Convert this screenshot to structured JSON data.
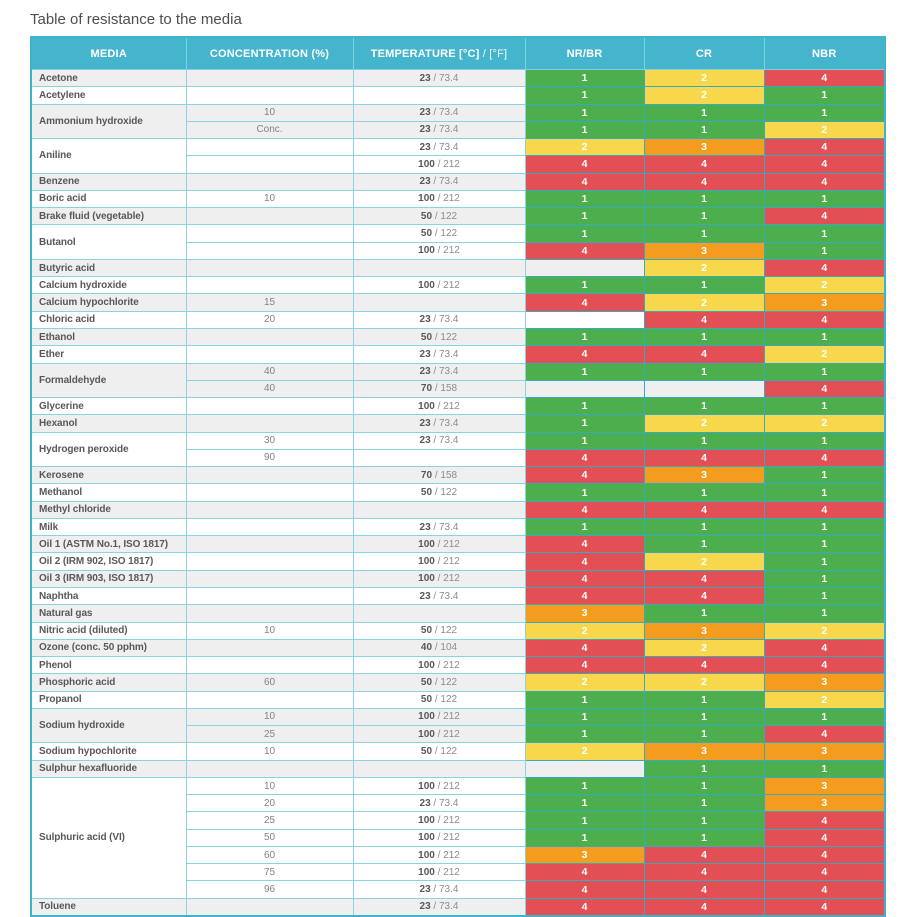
{
  "title": "Table of resistance to the media",
  "strings": {
    "temp_sep": " / "
  },
  "columns": [
    {
      "key": "media",
      "label": "MEDIA"
    },
    {
      "key": "concentration",
      "label": "CONCENTRATION (%)"
    },
    {
      "key": "temperature",
      "label_bold": "TEMPERATURE [°C]",
      "label_light": " / [°F]"
    },
    {
      "key": "nrbr",
      "label": "NR/BR"
    },
    {
      "key": "cr",
      "label": "CR"
    },
    {
      "key": "nbr",
      "label": "NBR"
    }
  ],
  "colors": {
    "header_bg": "#45b5ce",
    "outer_border": "#3fb3cc",
    "inner_border_light": "#8bd3e1",
    "inner_border_dark": "#35abc2",
    "row_alt_bg": "#efeff0",
    "text_dark": "#57585b",
    "text_gray": "#808285",
    "ratings": {
      "1": "#4cae4c",
      "2": "#f7d84c",
      "3": "#f49c1e",
      "4": "#e24f54"
    }
  },
  "rating_scale_note": "1=green 2=yellow 3=orange 4=red",
  "groups": [
    {
      "media": "Acetone",
      "rows": [
        {
          "conc": "",
          "temp": {
            "c": "23",
            "f": "73.4"
          },
          "ratings": [
            1,
            2,
            4
          ]
        }
      ]
    },
    {
      "media": "Acetylene",
      "rows": [
        {
          "conc": "",
          "temp": null,
          "ratings": [
            1,
            2,
            1
          ]
        }
      ]
    },
    {
      "media": "Ammonium hydroxide",
      "rows": [
        {
          "conc": "10",
          "temp": {
            "c": "23",
            "f": "73.4"
          },
          "ratings": [
            1,
            1,
            1
          ]
        },
        {
          "conc": "Conc.",
          "temp": {
            "c": "23",
            "f": "73.4"
          },
          "ratings": [
            1,
            1,
            2
          ]
        }
      ]
    },
    {
      "media": "Aniline",
      "rows": [
        {
          "conc": "",
          "temp": {
            "c": "23",
            "f": "73.4"
          },
          "ratings": [
            2,
            3,
            4
          ]
        },
        {
          "conc": "",
          "temp": {
            "c": "100",
            "f": "212"
          },
          "ratings": [
            4,
            4,
            4
          ]
        }
      ]
    },
    {
      "media": "Benzene",
      "rows": [
        {
          "conc": "",
          "temp": {
            "c": "23",
            "f": "73.4"
          },
          "ratings": [
            4,
            4,
            4
          ]
        }
      ]
    },
    {
      "media": "Boric acid",
      "rows": [
        {
          "conc": "10",
          "temp": {
            "c": "100",
            "f": "212"
          },
          "ratings": [
            1,
            1,
            1
          ]
        }
      ]
    },
    {
      "media": "Brake fluid (vegetable)",
      "rows": [
        {
          "conc": "",
          "temp": {
            "c": "50",
            "f": "122"
          },
          "ratings": [
            1,
            1,
            4
          ]
        }
      ]
    },
    {
      "media": "Butanol",
      "rows": [
        {
          "conc": "",
          "temp": {
            "c": "50",
            "f": "122"
          },
          "ratings": [
            1,
            1,
            1
          ]
        },
        {
          "conc": "",
          "temp": {
            "c": "100",
            "f": "212"
          },
          "ratings": [
            4,
            3,
            1
          ]
        }
      ]
    },
    {
      "media": "Butyric acid",
      "rows": [
        {
          "conc": "",
          "temp": null,
          "ratings": [
            null,
            2,
            4
          ]
        }
      ]
    },
    {
      "media": "Calcium hydroxide",
      "rows": [
        {
          "conc": "",
          "temp": {
            "c": "100",
            "f": "212"
          },
          "ratings": [
            1,
            1,
            2
          ]
        }
      ]
    },
    {
      "media": "Calcium hypochlorite",
      "rows": [
        {
          "conc": "15",
          "temp": null,
          "ratings": [
            4,
            2,
            3
          ]
        }
      ]
    },
    {
      "media": "Chloric acid",
      "rows": [
        {
          "conc": "20",
          "temp": {
            "c": "23",
            "f": "73.4"
          },
          "ratings": [
            null,
            4,
            4
          ]
        }
      ]
    },
    {
      "media": "Ethanol",
      "rows": [
        {
          "conc": "",
          "temp": {
            "c": "50",
            "f": "122"
          },
          "ratings": [
            1,
            1,
            1
          ]
        }
      ]
    },
    {
      "media": "Ether",
      "rows": [
        {
          "conc": "",
          "temp": {
            "c": "23",
            "f": "73.4"
          },
          "ratings": [
            4,
            4,
            2
          ]
        }
      ]
    },
    {
      "media": "Formaldehyde",
      "rows": [
        {
          "conc": "40",
          "temp": {
            "c": "23",
            "f": "73.4"
          },
          "ratings": [
            1,
            1,
            1
          ]
        },
        {
          "conc": "40",
          "temp": {
            "c": "70",
            "f": "158"
          },
          "ratings": [
            null,
            null,
            4
          ]
        }
      ]
    },
    {
      "media": "Glycerine",
      "rows": [
        {
          "conc": "",
          "temp": {
            "c": "100",
            "f": "212"
          },
          "ratings": [
            1,
            1,
            1
          ]
        }
      ]
    },
    {
      "media": "Hexanol",
      "rows": [
        {
          "conc": "",
          "temp": {
            "c": "23",
            "f": "73.4"
          },
          "ratings": [
            1,
            2,
            2
          ]
        }
      ]
    },
    {
      "media": "Hydrogen peroxide",
      "rows": [
        {
          "conc": "30",
          "temp": {
            "c": "23",
            "f": "73.4"
          },
          "ratings": [
            1,
            1,
            1
          ]
        },
        {
          "conc": "90",
          "temp": null,
          "ratings": [
            4,
            4,
            4
          ]
        }
      ]
    },
    {
      "media": "Kerosene",
      "rows": [
        {
          "conc": "",
          "temp": {
            "c": "70",
            "f": "158"
          },
          "ratings": [
            4,
            3,
            1
          ]
        }
      ]
    },
    {
      "media": "Methanol",
      "rows": [
        {
          "conc": "",
          "temp": {
            "c": "50",
            "f": "122"
          },
          "ratings": [
            1,
            1,
            1
          ]
        }
      ]
    },
    {
      "media": "Methyl chloride",
      "rows": [
        {
          "conc": "",
          "temp": null,
          "ratings": [
            4,
            4,
            4
          ]
        }
      ]
    },
    {
      "media": "Milk",
      "rows": [
        {
          "conc": "",
          "temp": {
            "c": "23",
            "f": "73.4"
          },
          "ratings": [
            1,
            1,
            1
          ]
        }
      ]
    },
    {
      "media": "Oil 1 (ASTM No.1, ISO 1817)",
      "rows": [
        {
          "conc": "",
          "temp": {
            "c": "100",
            "f": "212"
          },
          "ratings": [
            4,
            1,
            1
          ]
        }
      ]
    },
    {
      "media": "Oil 2 (IRM 902, ISO 1817)",
      "rows": [
        {
          "conc": "",
          "temp": {
            "c": "100",
            "f": "212"
          },
          "ratings": [
            4,
            2,
            1
          ]
        }
      ]
    },
    {
      "media": "Oil 3 (IRM 903, ISO 1817)",
      "rows": [
        {
          "conc": "",
          "temp": {
            "c": "100",
            "f": "212"
          },
          "ratings": [
            4,
            4,
            1
          ]
        }
      ]
    },
    {
      "media": "Naphtha",
      "rows": [
        {
          "conc": "",
          "temp": {
            "c": "23",
            "f": "73.4"
          },
          "ratings": [
            4,
            4,
            1
          ]
        }
      ]
    },
    {
      "media": "Natural gas",
      "rows": [
        {
          "conc": "",
          "temp": null,
          "ratings": [
            3,
            1,
            1
          ]
        }
      ]
    },
    {
      "media": "Nitric acid (diluted)",
      "rows": [
        {
          "conc": "10",
          "temp": {
            "c": "50",
            "f": "122"
          },
          "ratings": [
            2,
            3,
            2
          ]
        }
      ]
    },
    {
      "media": "Ozone (conc. 50 pphm)",
      "rows": [
        {
          "conc": "",
          "temp": {
            "c": "40",
            "f": "104"
          },
          "ratings": [
            4,
            2,
            4
          ]
        }
      ]
    },
    {
      "media": "Phenol",
      "rows": [
        {
          "conc": "",
          "temp": {
            "c": "100",
            "f": "212"
          },
          "ratings": [
            4,
            4,
            4
          ]
        }
      ]
    },
    {
      "media": "Phosphoric acid",
      "rows": [
        {
          "conc": "60",
          "temp": {
            "c": "50",
            "f": "122"
          },
          "ratings": [
            2,
            2,
            3
          ]
        }
      ]
    },
    {
      "media": "Propanol",
      "rows": [
        {
          "conc": "",
          "temp": {
            "c": "50",
            "f": "122"
          },
          "ratings": [
            1,
            1,
            2
          ]
        }
      ]
    },
    {
      "media": "Sodium hydroxide",
      "rows": [
        {
          "conc": "10",
          "temp": {
            "c": "100",
            "f": "212"
          },
          "ratings": [
            1,
            1,
            1
          ]
        },
        {
          "conc": "25",
          "temp": {
            "c": "100",
            "f": "212"
          },
          "ratings": [
            1,
            1,
            4
          ]
        }
      ]
    },
    {
      "media": "Sodium hypochlorite",
      "rows": [
        {
          "conc": "10",
          "temp": {
            "c": "50",
            "f": "122"
          },
          "ratings": [
            2,
            3,
            3
          ]
        }
      ]
    },
    {
      "media": "Sulphur hexafluoride",
      "rows": [
        {
          "conc": "",
          "temp": null,
          "ratings": [
            null,
            1,
            1
          ]
        }
      ]
    },
    {
      "media": "Sulphuric acid (VI)",
      "rows": [
        {
          "conc": "10",
          "temp": {
            "c": "100",
            "f": "212"
          },
          "ratings": [
            1,
            1,
            3
          ]
        },
        {
          "conc": "20",
          "temp": {
            "c": "23",
            "f": "73.4"
          },
          "ratings": [
            1,
            1,
            3
          ]
        },
        {
          "conc": "25",
          "temp": {
            "c": "100",
            "f": "212"
          },
          "ratings": [
            1,
            1,
            4
          ]
        },
        {
          "conc": "50",
          "temp": {
            "c": "100",
            "f": "212"
          },
          "ratings": [
            1,
            1,
            4
          ]
        },
        {
          "conc": "60",
          "temp": {
            "c": "100",
            "f": "212"
          },
          "ratings": [
            3,
            4,
            4
          ]
        },
        {
          "conc": "75",
          "temp": {
            "c": "100",
            "f": "212"
          },
          "ratings": [
            4,
            4,
            4
          ]
        },
        {
          "conc": "96",
          "temp": {
            "c": "23",
            "f": "73.4"
          },
          "ratings": [
            4,
            4,
            4
          ]
        }
      ]
    },
    {
      "media": "Toluene",
      "rows": [
        {
          "conc": "",
          "temp": {
            "c": "23",
            "f": "73.4"
          },
          "ratings": [
            4,
            4,
            4
          ]
        }
      ]
    }
  ]
}
